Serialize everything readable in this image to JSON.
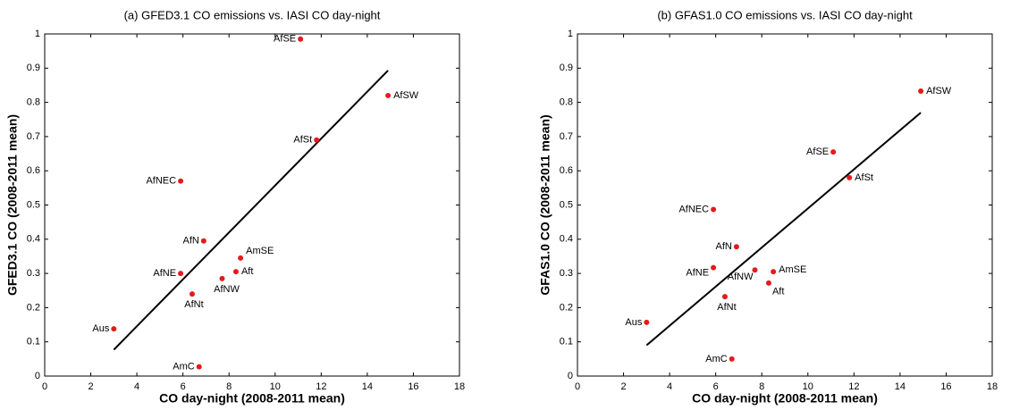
{
  "chart_data": [
    {
      "type": "scatter",
      "title": "(a) GFED3.1 CO emissions vs. IASI CO day-night",
      "xlabel": "CO day-night (2008-2011 mean)",
      "ylabel": "GFED3.1 CO (2008-2011 mean)",
      "xlim": [
        0,
        18
      ],
      "xticks": [
        0,
        2,
        4,
        6,
        8,
        10,
        12,
        14,
        16,
        18
      ],
      "ylim": [
        0,
        1
      ],
      "yticks": [
        0,
        0.1,
        0.2,
        0.3,
        0.4,
        0.5,
        0.6,
        0.7,
        0.8,
        0.9,
        1
      ],
      "series": [
        {
          "color": "#e41a1c",
          "labels": [
            "AfSE",
            "AfSW",
            "AfSt",
            "AfNEC",
            "AfN",
            "AmSE",
            "AfNE",
            "Aft",
            "AfNW",
            "AfNt",
            "Aus",
            "AmC"
          ],
          "x": [
            11.1,
            14.9,
            11.8,
            5.9,
            6.9,
            8.5,
            5.9,
            8.3,
            7.7,
            6.4,
            3.0,
            6.7
          ],
          "values": [
            0.985,
            0.82,
            0.69,
            0.57,
            0.395,
            0.345,
            0.3,
            0.305,
            0.285,
            0.24,
            0.138,
            0.027
          ]
        }
      ],
      "fit": {
        "color": "#000000",
        "x": [
          3.0,
          14.9
        ],
        "values": [
          0.077,
          0.893
        ]
      }
    },
    {
      "type": "scatter",
      "title": "(b) GFAS1.0 CO emissions vs. IASI CO day-night",
      "xlabel": "CO day-night (2008-2011 mean)",
      "ylabel": "GFAS1.0 CO (2008-2011 mean)",
      "xlim": [
        0,
        18
      ],
      "xticks": [
        0,
        2,
        4,
        6,
        8,
        10,
        12,
        14,
        16,
        18
      ],
      "ylim": [
        0,
        1
      ],
      "yticks": [
        0,
        0.1,
        0.2,
        0.3,
        0.4,
        0.5,
        0.6,
        0.7,
        0.8,
        0.9,
        1
      ],
      "series": [
        {
          "color": "#e41a1c",
          "labels": [
            "AfSW",
            "AfSE",
            "AfSt",
            "AfNEC",
            "AfN",
            "AmSE",
            "AfNE",
            "AfNW",
            "Aft",
            "AfNt",
            "Aus",
            "AmC"
          ],
          "x": [
            14.9,
            11.1,
            11.8,
            5.9,
            6.9,
            8.5,
            5.9,
            7.7,
            8.3,
            6.4,
            3.0,
            6.7
          ],
          "values": [
            0.833,
            0.655,
            0.58,
            0.487,
            0.378,
            0.305,
            0.317,
            0.31,
            0.272,
            0.232,
            0.157,
            0.05
          ]
        }
      ],
      "fit": {
        "color": "#000000",
        "x": [
          3.0,
          14.9
        ],
        "values": [
          0.09,
          0.77
        ]
      }
    }
  ]
}
